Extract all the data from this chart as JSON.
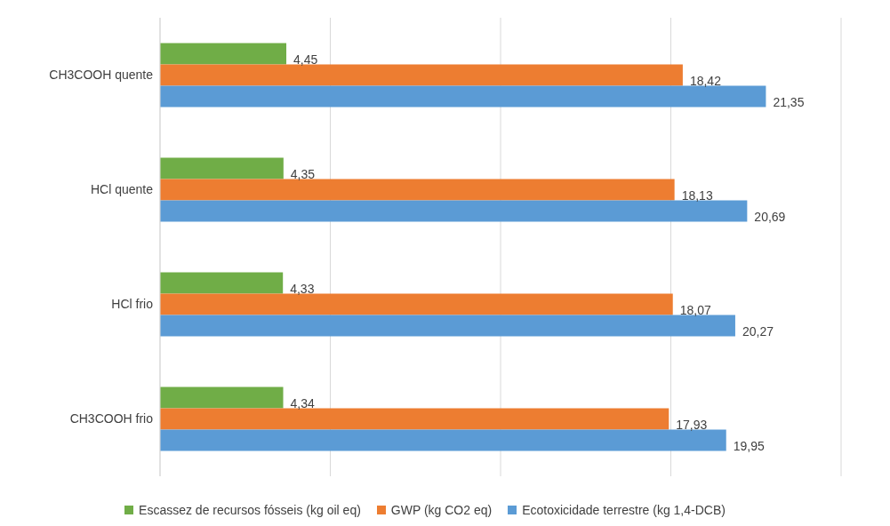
{
  "chart_data": {
    "type": "bar",
    "orientation": "horizontal",
    "categories": [
      "CH3COOH quente",
      "HCl quente",
      "HCl frio",
      "CH3COOH frio"
    ],
    "series": [
      {
        "name": "Escassez de recursos fósseis (kg oil eq)",
        "color": "#70ad47",
        "values": [
          4.45,
          4.35,
          4.33,
          4.34
        ],
        "value_labels": [
          "4,45",
          "4,35",
          "4,33",
          "4,34"
        ]
      },
      {
        "name": "GWP (kg CO2 eq)",
        "color": "#ed7d31",
        "values": [
          18.42,
          18.13,
          18.07,
          17.93
        ],
        "value_labels": [
          "18,42",
          "18,13",
          "18,07",
          "17,93"
        ]
      },
      {
        "name": "Ecotoxicidade terrestre (kg 1,4-DCB)",
        "color": "#5b9bd5",
        "values": [
          21.35,
          20.69,
          20.27,
          19.95
        ],
        "value_labels": [
          "21,35",
          "20,69",
          "20,27",
          "19,95"
        ]
      }
    ],
    "grid": "x",
    "legend": "bottom",
    "tick_labels": "y"
  }
}
